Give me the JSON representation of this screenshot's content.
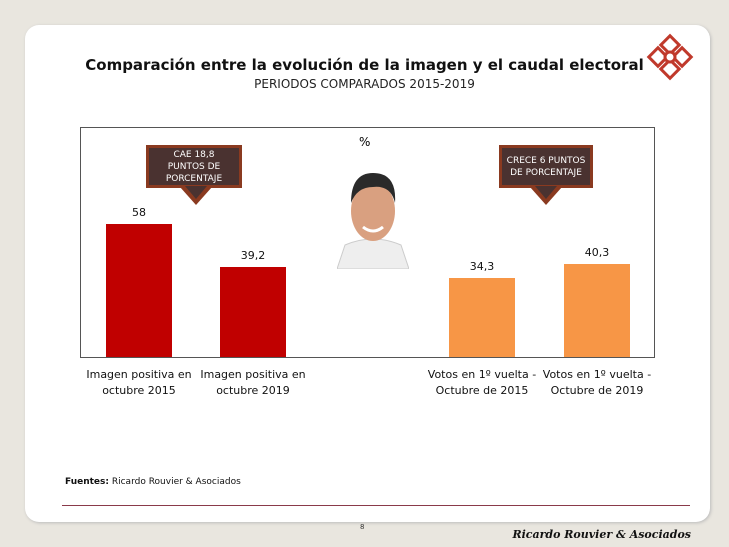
{
  "header": {
    "title": "Comparación entre la evolución de la imagen y el caudal electoral",
    "subtitle": "PERIODOS COMPARADOS 2015-2019"
  },
  "chart_data": {
    "type": "bar",
    "title": "Comparación entre la evolución de la imagen y el caudal electoral",
    "ylabel": "%",
    "categories": [
      "Imagen positiva en octubre 2015",
      "Imagen positiva en octubre 2019",
      "Votos en 1º vuelta - Octubre de 2015",
      "Votos en 1º vuelta - Octubre de 2019"
    ],
    "cat_lines": [
      [
        "Imagen positiva en",
        "octubre 2015"
      ],
      [
        "Imagen positiva en",
        "octubre 2019"
      ],
      [
        "Votos en 1º vuelta -",
        "Octubre de 2015"
      ],
      [
        "Votos en 1º vuelta -",
        "Octubre de 2019"
      ]
    ],
    "values": [
      58,
      39.2,
      34.3,
      40.3
    ],
    "value_labels": [
      "58",
      "39,2",
      "34,3",
      "40,3"
    ],
    "colors": [
      "#c00000",
      "#c00000",
      "#f79646",
      "#f79646"
    ],
    "ylim": [
      0,
      100
    ],
    "grid": false,
    "annotations": [
      {
        "lines": [
          "CAE 18,8",
          "PUNTOS DE",
          "PORCENTAJE"
        ]
      },
      {
        "lines": [
          "CRECE 6 PUNTOS",
          "DE PORCENTAJE"
        ]
      }
    ]
  },
  "footer": {
    "source_label": "Fuentes:",
    "source": "Ricardo Rouvier & Asociados",
    "page": "8",
    "brand": "Ricardo Rouvier & Asociados"
  },
  "colors": {
    "accent": "#c0392b"
  }
}
